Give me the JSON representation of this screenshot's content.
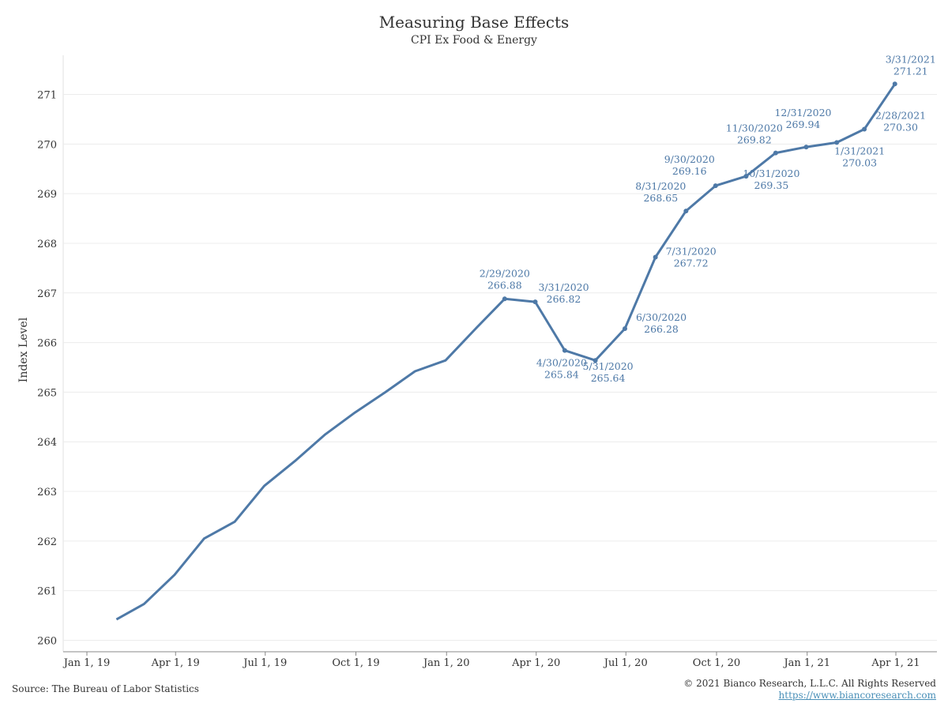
{
  "chart_data": {
    "type": "line",
    "title": "Measuring Base Effects",
    "subtitle": "CPI Ex Food & Energy",
    "xlabel": "",
    "ylabel": "Index Level",
    "ylim": [
      259.85,
      271.85
    ],
    "ytick_values": [
      260,
      261,
      262,
      263,
      264,
      265,
      266,
      267,
      268,
      269,
      270,
      271
    ],
    "ytick_labels": [
      "260",
      "261",
      "262",
      "263",
      "264",
      "265",
      "266",
      "267",
      "268",
      "269",
      "270",
      "271"
    ],
    "xticks": [
      {
        "date": "2019-01-01",
        "label": "Jan 1, 19"
      },
      {
        "date": "2019-04-01",
        "label": "Apr 1, 19"
      },
      {
        "date": "2019-07-01",
        "label": "Jul 1, 19"
      },
      {
        "date": "2019-10-01",
        "label": "Oct 1, 19"
      },
      {
        "date": "2020-01-01",
        "label": "Jan 1, 20"
      },
      {
        "date": "2020-04-01",
        "label": "Apr 1, 20"
      },
      {
        "date": "2020-07-01",
        "label": "Jul 1, 20"
      },
      {
        "date": "2020-10-01",
        "label": "Oct 1, 20"
      },
      {
        "date": "2021-01-01",
        "label": "Jan 1, 21"
      },
      {
        "date": "2021-04-01",
        "label": "Apr 1, 21"
      }
    ],
    "series": [
      {
        "color": "#4e79a7",
        "points": [
          {
            "x": "2019-01-31",
            "y": 260.42
          },
          {
            "x": "2019-02-28",
            "y": 260.73
          },
          {
            "x": "2019-03-31",
            "y": 261.32
          },
          {
            "x": "2019-04-30",
            "y": 262.05
          },
          {
            "x": "2019-05-31",
            "y": 262.39
          },
          {
            "x": "2019-06-30",
            "y": 263.11
          },
          {
            "x": "2019-07-31",
            "y": 263.61
          },
          {
            "x": "2019-08-31",
            "y": 264.15
          },
          {
            "x": "2019-09-30",
            "y": 264.59
          },
          {
            "x": "2019-10-31",
            "y": 265.0
          },
          {
            "x": "2019-11-30",
            "y": 265.42
          },
          {
            "x": "2019-12-31",
            "y": 265.64
          },
          {
            "x": "2020-01-31",
            "y": 266.29
          },
          {
            "x": "2020-02-29",
            "y": 266.88,
            "label_date": "2/29/2020",
            "label_value": "266.88"
          },
          {
            "x": "2020-03-31",
            "y": 266.82,
            "label_date": "3/31/2020",
            "label_value": "266.82"
          },
          {
            "x": "2020-04-30",
            "y": 265.84,
            "label_date": "4/30/2020",
            "label_value": "265.84"
          },
          {
            "x": "2020-05-31",
            "y": 265.64,
            "label_date": "5/31/2020",
            "label_value": "265.64"
          },
          {
            "x": "2020-06-30",
            "y": 266.28,
            "label_date": "6/30/2020",
            "label_value": "266.28"
          },
          {
            "x": "2020-07-31",
            "y": 267.72,
            "label_date": "7/31/2020",
            "label_value": "267.72"
          },
          {
            "x": "2020-08-31",
            "y": 268.65,
            "label_date": "8/31/2020",
            "label_value": "268.65"
          },
          {
            "x": "2020-09-30",
            "y": 269.16,
            "label_date": "9/30/2020",
            "label_value": "269.16"
          },
          {
            "x": "2020-10-31",
            "y": 269.35,
            "label_date": "10/31/2020",
            "label_value": "269.35"
          },
          {
            "x": "2020-11-30",
            "y": 269.82,
            "label_date": "11/30/2020",
            "label_value": "269.82"
          },
          {
            "x": "2020-12-31",
            "y": 269.94,
            "label_date": "12/31/2020",
            "label_value": "269.94"
          },
          {
            "x": "2021-01-31",
            "y": 270.03,
            "label_date": "1/31/2021",
            "label_value": "270.03"
          },
          {
            "x": "2021-02-28",
            "y": 270.3,
            "label_date": "2/28/2021",
            "label_value": "270.30"
          },
          {
            "x": "2021-03-31",
            "y": 271.21,
            "label_date": "3/31/2021",
            "label_value": "271.21"
          }
        ]
      }
    ],
    "grid": true,
    "legend": "none"
  },
  "footer": {
    "source": "Source: The Bureau of Labor Statistics",
    "copyright": "© 2021 Bianco Research, L.L.C. All Rights Reserved",
    "website": "https://www.biancoresearch.com"
  }
}
